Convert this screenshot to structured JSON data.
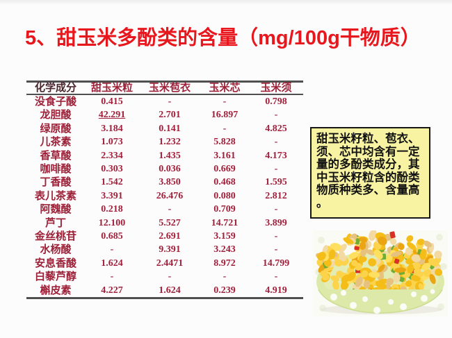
{
  "title": "5、甜玉米多酚类的含量（mg/100g干物质）",
  "table": {
    "headers": [
      "化学成分",
      "甜玉米粒",
      "玉米苞衣",
      "玉米芯",
      "玉米须"
    ],
    "rows": [
      {
        "label": "没食子酸",
        "values": [
          "0.415",
          "-",
          "-",
          "0.798"
        ]
      },
      {
        "label": "龙胆酸",
        "values": [
          "42.291",
          "2.701",
          "16.897",
          "-"
        ],
        "u": 0
      },
      {
        "label": "绿原酸",
        "values": [
          "3.184",
          "0.141",
          "-",
          "4.825"
        ]
      },
      {
        "label": "儿茶素",
        "values": [
          "1.073",
          "1.232",
          "5.828",
          "-"
        ]
      },
      {
        "label": "香草酸",
        "values": [
          "2.334",
          "1.435",
          "3.161",
          "4.173"
        ]
      },
      {
        "label": "咖啡酸",
        "values": [
          "0.303",
          "0.036",
          "0.669",
          "-"
        ]
      },
      {
        "label": "丁香酸",
        "values": [
          "1.542",
          "3.850",
          "0.468",
          "1.595"
        ]
      },
      {
        "label": "表儿茶素",
        "values": [
          "3.391",
          "26.476",
          "0.080",
          "2.812"
        ]
      },
      {
        "label": "阿魏酸",
        "values": [
          "0.218",
          "-",
          "0.709",
          "-"
        ]
      },
      {
        "label": "芦丁",
        "values": [
          "12.100",
          "5.527",
          "14.721",
          "3.899"
        ]
      },
      {
        "label": "金丝桃苷",
        "values": [
          "0.685",
          "2.691",
          "3.159",
          "-"
        ]
      },
      {
        "label": "水杨酸",
        "values": [
          "-",
          "9.391",
          "3.243",
          "-"
        ]
      },
      {
        "label": "安息香酸",
        "values": [
          "1.624",
          "2.4471",
          "8.972",
          "14.799"
        ]
      },
      {
        "label": "白藜芦醇",
        "values": [
          "-",
          "-",
          "-",
          "-"
        ]
      },
      {
        "label": "槲皮素",
        "values": [
          "4.227",
          "1.624",
          "0.239",
          "4.919"
        ]
      }
    ]
  },
  "note": {
    "text": "甜玉米籽粒、苞衣、须、芯中均含有一定量的多酚类成分，其中玉米籽粒含的酚类物质种类多、含量高。"
  },
  "photo": {
    "description": "corn-and-peanut-salad-in-green-polka-dot-bowl",
    "palette": {
      "corn1": "#f5bd18",
      "corn2": "#fcd34a",
      "corn3": "#eca512",
      "corn4": "#ffdf60",
      "peanut": "#f3d9a2",
      "peanut2": "#e7c27e",
      "red": "#d93025",
      "green": "#6fae35",
      "bowl": "#dde9a9",
      "bowl_inner": "#e2ecb4",
      "bg": "#fbfbf5"
    }
  },
  "colors": {
    "title_red": "#e8171d",
    "table_text": "#9d2138",
    "note_bg": "#f7f3a3",
    "rule": "#4f4f4f"
  }
}
